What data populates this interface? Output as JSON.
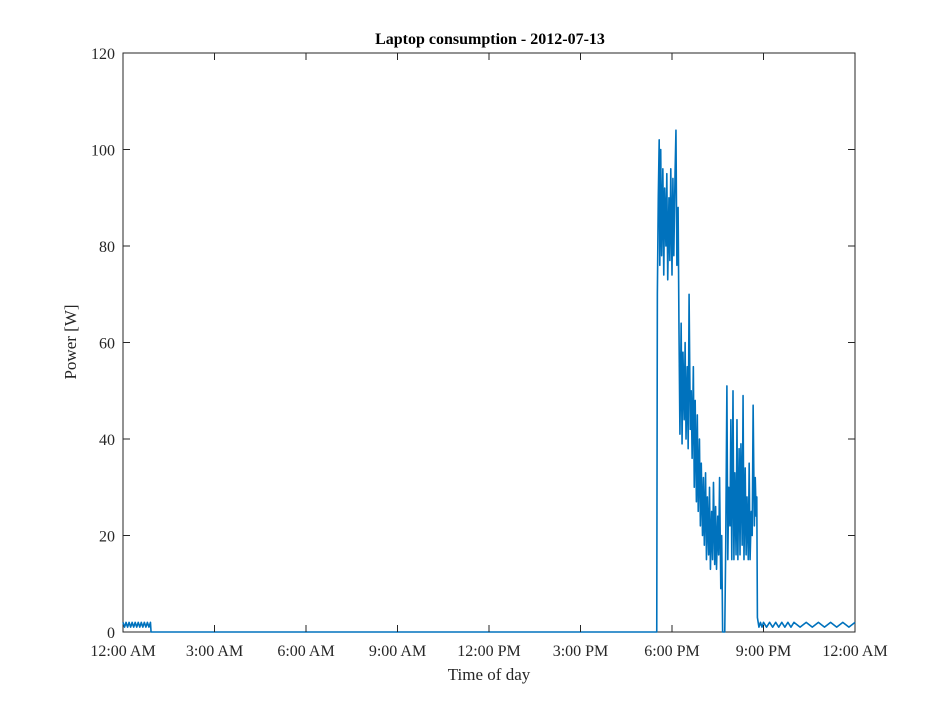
{
  "chart_data": {
    "type": "line",
    "title": "Laptop consumption - 2012-07-13",
    "xlabel": "Time of day",
    "ylabel": "Power [W]",
    "xlim": [
      0,
      24
    ],
    "ylim": [
      0,
      120
    ],
    "x_ticks": [
      {
        "value": 0,
        "label": "12:00 AM"
      },
      {
        "value": 3,
        "label": "3:00 AM"
      },
      {
        "value": 6,
        "label": "6:00 AM"
      },
      {
        "value": 9,
        "label": "9:00 AM"
      },
      {
        "value": 12,
        "label": "12:00 PM"
      },
      {
        "value": 15,
        "label": "3:00 PM"
      },
      {
        "value": 18,
        "label": "6:00 PM"
      },
      {
        "value": 21,
        "label": "9:00 PM"
      },
      {
        "value": 24,
        "label": "12:00 AM"
      }
    ],
    "y_ticks": [
      0,
      20,
      40,
      60,
      80,
      100,
      120
    ],
    "grid": false,
    "series": [
      {
        "color": "#0072BD",
        "x": [
          0.0,
          0.05,
          0.1,
          0.15,
          0.2,
          0.25,
          0.3,
          0.35,
          0.4,
          0.45,
          0.5,
          0.55,
          0.6,
          0.65,
          0.7,
          0.75,
          0.8,
          0.85,
          0.9,
          0.92,
          1.0,
          3.0,
          6.0,
          9.0,
          12.0,
          15.0,
          17.45,
          17.5,
          17.52,
          17.55,
          17.58,
          17.6,
          17.63,
          17.66,
          17.7,
          17.73,
          17.76,
          17.8,
          17.83,
          17.86,
          17.9,
          17.93,
          17.96,
          18.0,
          18.03,
          18.06,
          18.1,
          18.13,
          18.16,
          18.2,
          18.23,
          18.26,
          18.3,
          18.33,
          18.36,
          18.4,
          18.43,
          18.46,
          18.5,
          18.53,
          18.56,
          18.6,
          18.63,
          18.66,
          18.7,
          18.73,
          18.76,
          18.8,
          18.83,
          18.86,
          18.9,
          18.93,
          18.96,
          19.0,
          19.03,
          19.06,
          19.1,
          19.13,
          19.16,
          19.2,
          19.23,
          19.26,
          19.3,
          19.33,
          19.36,
          19.4,
          19.43,
          19.46,
          19.5,
          19.53,
          19.56,
          19.6,
          19.63,
          19.66,
          19.7,
          19.73,
          19.76,
          19.8,
          19.83,
          19.86,
          19.9,
          19.93,
          19.96,
          20.0,
          20.03,
          20.06,
          20.1,
          20.13,
          20.16,
          20.2,
          20.23,
          20.26,
          20.3,
          20.33,
          20.36,
          20.4,
          20.43,
          20.46,
          20.5,
          20.53,
          20.56,
          20.6,
          20.63,
          20.66,
          20.7,
          20.73,
          20.76,
          20.78,
          20.8,
          20.85,
          20.9,
          20.95,
          21.0,
          21.1,
          21.2,
          21.3,
          21.4,
          21.5,
          21.6,
          21.7,
          21.8,
          21.9,
          22.0,
          22.2,
          22.4,
          22.6,
          22.8,
          23.0,
          23.2,
          23.4,
          23.6,
          23.8,
          24.0
        ],
        "y": [
          2,
          1,
          2,
          1,
          2,
          1,
          2,
          1,
          2,
          1,
          2,
          1,
          2,
          1,
          2,
          1,
          2,
          1,
          2,
          0,
          0,
          0,
          0,
          0,
          0,
          0,
          0,
          0,
          70,
          90,
          102,
          76,
          100,
          78,
          96,
          74,
          92,
          80,
          95,
          73,
          90,
          77,
          96,
          74,
          94,
          78,
          95,
          104,
          76,
          88,
          62,
          41,
          64,
          39,
          58,
          44,
          60,
          40,
          55,
          38,
          70,
          42,
          50,
          36,
          55,
          30,
          48,
          27,
          45,
          25,
          40,
          22,
          35,
          20,
          32,
          18,
          33,
          15,
          28,
          16,
          30,
          13,
          25,
          15,
          31,
          14,
          26,
          13,
          24,
          16,
          32,
          9,
          20,
          0,
          0,
          0,
          17,
          51,
          15,
          30,
          22,
          44,
          15,
          50,
          15,
          33,
          16,
          44,
          15,
          38,
          16,
          39,
          18,
          49,
          15,
          34,
          16,
          28,
          15,
          35,
          15,
          25,
          20,
          47,
          22,
          32,
          24,
          28,
          3,
          1,
          2,
          1,
          2,
          1,
          2,
          1,
          2,
          1,
          2,
          1,
          2,
          1,
          2,
          1,
          2,
          1,
          2,
          1,
          2,
          1,
          2,
          1,
          2
        ]
      }
    ]
  }
}
